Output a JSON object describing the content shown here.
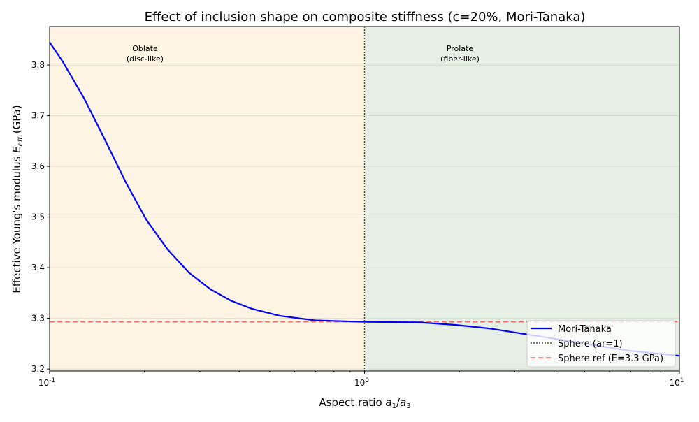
{
  "chart_data": {
    "type": "line",
    "title": "Effect of inclusion shape on composite stiffness (c=20%, Mori-Tanaka)",
    "xlabel": "Aspect ratio a1/a3",
    "ylabel": "Effective Young's modulus E_eff (GPa)",
    "xscale": "log",
    "xlim": [
      0.1,
      10
    ],
    "ylim": [
      3.196,
      3.876
    ],
    "xticks": [
      {
        "value": 0.1,
        "label": "10^-1"
      },
      {
        "value": 1,
        "label": "10^0"
      },
      {
        "value": 10,
        "label": "10^1"
      }
    ],
    "yticks": [
      "3.2",
      "3.3",
      "3.4",
      "3.5",
      "3.6",
      "3.7",
      "3.8"
    ],
    "grid": true,
    "legend_position": "lower-right",
    "regions": [
      {
        "label_line1": "Oblate",
        "label_line2": "(disc-like)",
        "x_range": [
          0.1,
          1
        ],
        "color": "#fdf4e3"
      },
      {
        "label_line1": "Prolate",
        "label_line2": "(fiber-like)",
        "x_range": [
          1,
          10
        ],
        "color": "#e5efe3"
      }
    ],
    "series": [
      {
        "name": "Mori-Tanaka",
        "color": "#0000ff",
        "style": "solid",
        "x": [
          0.1,
          0.11,
          0.1285,
          0.15,
          0.174,
          0.203,
          0.237,
          0.277,
          0.323,
          0.376,
          0.438,
          0.537,
          0.695,
          1.0,
          1.49,
          1.94,
          2.49,
          3.22,
          4.17,
          5.37,
          6.93,
          10
        ],
        "y": [
          3.845,
          3.807,
          3.735,
          3.652,
          3.57,
          3.494,
          3.436,
          3.39,
          3.358,
          3.335,
          3.319,
          3.305,
          3.296,
          3.293,
          3.292,
          3.287,
          3.28,
          3.269,
          3.258,
          3.247,
          3.236,
          3.226
        ]
      },
      {
        "name": "Sphere (ar=1)",
        "color": "#555555",
        "style": "dotted",
        "vertical_x": 1
      },
      {
        "name": "Sphere ref (E=3.3 GPa)",
        "color": "#ff4040",
        "style": "dashed",
        "horizontal_y": 3.293
      }
    ]
  }
}
